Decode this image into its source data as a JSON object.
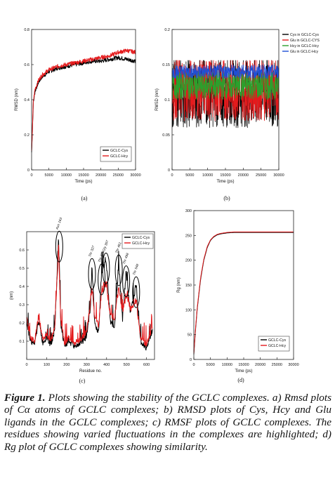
{
  "figure": {
    "caption_title": "Figure 1.",
    "caption_line1": "Plots showing the stability of the GCLC complexes.",
    "caption_body": "a) Rmsd plots of Cα atoms of GCLC complexes; b) RMSD plots of Cys, Hcy and Glu ligands in the GCLC complexes; c) RMSF plots of GCLC complexes. The residues showing varied fluctuations in the complexes are highlighted; d) Rg plot of GCLC complexes showing similarity."
  },
  "chart_data": [
    {
      "panel": "(a)",
      "type": "line",
      "xlabel": "Time (ps)",
      "ylabel": "RMSD (nm)",
      "xlim": [
        0,
        30000
      ],
      "ylim": [
        0,
        0.8
      ],
      "x_ticks": [
        "0",
        "5000",
        "10000",
        "15000",
        "20000",
        "25000",
        "30000"
      ],
      "y_ticks": [
        "0",
        "0.2",
        "0.4",
        "0.6",
        "0.8"
      ],
      "legend_position": "bottom-right",
      "series": [
        {
          "name": "GCLC-Cys",
          "color": "#000000",
          "x": [
            0,
            500,
            1000,
            2000,
            3000,
            5000,
            7500,
            10000,
            12500,
            15000,
            17500,
            20000,
            22500,
            25000,
            27500,
            30000
          ],
          "y": [
            0.1,
            0.38,
            0.45,
            0.5,
            0.53,
            0.56,
            0.58,
            0.59,
            0.6,
            0.61,
            0.62,
            0.62,
            0.63,
            0.64,
            0.63,
            0.62
          ]
        },
        {
          "name": "GCLC-Hcy",
          "color": "#e41a1c",
          "x": [
            0,
            500,
            1000,
            2000,
            3000,
            5000,
            7500,
            10000,
            12500,
            15000,
            17500,
            20000,
            22500,
            25000,
            27500,
            30000
          ],
          "y": [
            0.1,
            0.39,
            0.46,
            0.51,
            0.54,
            0.57,
            0.59,
            0.6,
            0.61,
            0.62,
            0.63,
            0.64,
            0.65,
            0.67,
            0.68,
            0.67
          ]
        }
      ]
    },
    {
      "panel": "(b)",
      "type": "line",
      "xlabel": "Time (ps)",
      "ylabel": "RMSD (nm)",
      "xlim": [
        0,
        30000
      ],
      "ylim": [
        0,
        0.2
      ],
      "x_ticks": [
        "0",
        "5000",
        "10000",
        "15000",
        "20000",
        "25000",
        "30000"
      ],
      "y_ticks": [
        "0",
        "0.05",
        "0.1",
        "0.15",
        "0.2"
      ],
      "legend_position": "top-right",
      "series": [
        {
          "name": "Cys in GCLC-Cys",
          "color": "#000000",
          "mean": 0.11,
          "spread": 0.05
        },
        {
          "name": "Glu in GCLC-CYS",
          "color": "#e41a1c",
          "mean": 0.115,
          "spread": 0.045
        },
        {
          "name": "Hcy in GCLC-Hcy",
          "color": "#2ca02c",
          "mean": 0.12,
          "spread": 0.02
        },
        {
          "name": "Glu in GCLC-Hcy",
          "color": "#1f4fd6",
          "mean": 0.14,
          "spread": 0.01
        }
      ]
    },
    {
      "panel": "(c)",
      "type": "line",
      "xlabel": "Residue no.",
      "ylabel": "(nm)",
      "xlim": [
        0,
        640
      ],
      "ylim": [
        0,
        0.7
      ],
      "x_ticks": [
        "0",
        "100",
        "200",
        "300",
        "400",
        "500",
        "600"
      ],
      "y_ticks": [
        "0.1",
        "0.2",
        "0.3",
        "0.4",
        "0.5",
        "0.6"
      ],
      "legend_position": "top-right",
      "highlighted_residues": [
        {
          "label": "Asn 163",
          "x": 163,
          "y": 0.68
        },
        {
          "label": "Thr 327",
          "x": 327,
          "y": 0.53
        },
        {
          "label": "Thr 375",
          "x": 375,
          "y": 0.5
        },
        {
          "label": "Gly 397",
          "x": 397,
          "y": 0.56
        },
        {
          "label": "Thr 461",
          "x": 461,
          "y": 0.55
        },
        {
          "label": "Thr 498",
          "x": 498,
          "y": 0.49
        },
        {
          "label": "Thr 548",
          "x": 548,
          "y": 0.43
        }
      ],
      "series": [
        {
          "name": "GCLC-Cys",
          "color": "#000000",
          "x": [
            0,
            20,
            40,
            60,
            80,
            100,
            120,
            140,
            160,
            170,
            190,
            210,
            240,
            270,
            300,
            320,
            327,
            340,
            360,
            375,
            397,
            420,
            440,
            461,
            480,
            498,
            520,
            548,
            570,
            600,
            630
          ],
          "y": [
            0.2,
            0.1,
            0.08,
            0.22,
            0.09,
            0.12,
            0.08,
            0.15,
            0.67,
            0.2,
            0.07,
            0.1,
            0.07,
            0.09,
            0.12,
            0.3,
            0.52,
            0.2,
            0.15,
            0.49,
            0.55,
            0.2,
            0.18,
            0.53,
            0.22,
            0.48,
            0.25,
            0.42,
            0.1,
            0.06,
            0.16
          ]
        },
        {
          "name": "GCLC-Hcy",
          "color": "#e41a1c",
          "x": [
            0,
            20,
            40,
            60,
            80,
            100,
            120,
            140,
            160,
            170,
            190,
            210,
            240,
            270,
            300,
            320,
            327,
            340,
            360,
            375,
            397,
            420,
            440,
            461,
            480,
            498,
            520,
            548,
            570,
            600,
            630
          ],
          "y": [
            0.22,
            0.12,
            0.1,
            0.24,
            0.11,
            0.14,
            0.1,
            0.17,
            0.62,
            0.22,
            0.09,
            0.12,
            0.09,
            0.11,
            0.15,
            0.32,
            0.4,
            0.24,
            0.18,
            0.38,
            0.42,
            0.24,
            0.22,
            0.4,
            0.26,
            0.36,
            0.28,
            0.33,
            0.12,
            0.08,
            0.18
          ]
        }
      ]
    },
    {
      "panel": "(d)",
      "type": "line",
      "xlabel": "Time (ps)",
      "ylabel": "Rg (nm)",
      "xlim": [
        0,
        30000
      ],
      "ylim": [
        0,
        300
      ],
      "x_ticks": [
        "0",
        "5000",
        "10000",
        "15000",
        "20000",
        "25000",
        "30000"
      ],
      "y_ticks": [
        "0",
        "50",
        "100",
        "150",
        "200",
        "250",
        "300"
      ],
      "legend_position": "bottom-right",
      "series": [
        {
          "name": "GCLC-Cys",
          "color": "#000000",
          "x": [
            0,
            500,
            1000,
            2000,
            3000,
            4000,
            5000,
            6000,
            7000,
            8000,
            10000,
            12000,
            15000,
            20000,
            25000,
            30000
          ],
          "y": [
            10,
            60,
            100,
            160,
            200,
            225,
            240,
            247,
            251,
            253,
            255,
            256,
            256,
            256,
            256,
            256
          ]
        },
        {
          "name": "GCLC-Hcy",
          "color": "#e41a1c",
          "x": [
            0,
            500,
            1000,
            2000,
            3000,
            4000,
            5000,
            6000,
            7000,
            8000,
            10000,
            12000,
            15000,
            20000,
            25000,
            30000
          ],
          "y": [
            12,
            63,
            103,
            163,
            202,
            227,
            241,
            248,
            252,
            254,
            256,
            257,
            257,
            257,
            257,
            257
          ]
        }
      ]
    }
  ]
}
